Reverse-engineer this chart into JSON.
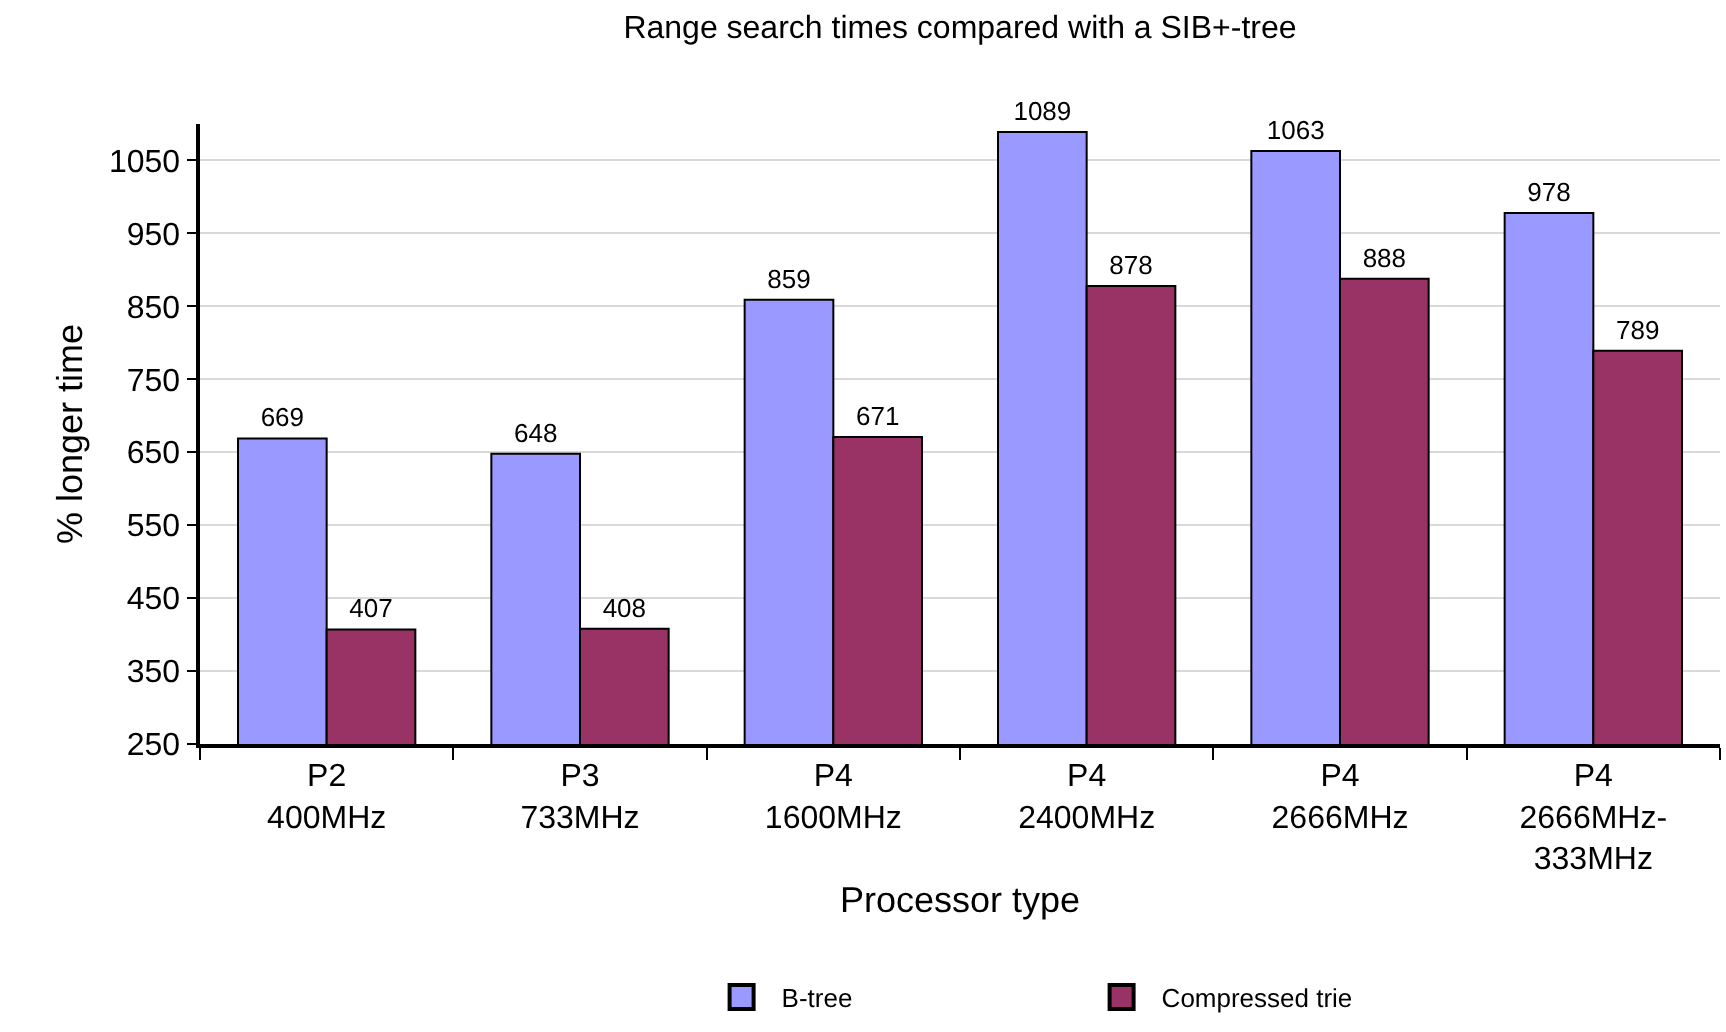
{
  "chart_data": {
    "type": "bar",
    "title": "Range search times compared with a SIB+-tree",
    "xlabel": "Processor type",
    "ylabel": "% longer time",
    "categories": [
      "P2\n400MHz",
      "P3\n733MHz",
      "P4\n1600MHz",
      "P4\n2400MHz",
      "P4\n2666MHz",
      "P4\n2666MHz-\n333MHz"
    ],
    "series": [
      {
        "name": "B-tree",
        "color": "#9999ff",
        "values": [
          669,
          648,
          859,
          1089,
          1063,
          978
        ]
      },
      {
        "name": "Compressed trie",
        "color": "#993366",
        "values": [
          407,
          408,
          671,
          878,
          888,
          789
        ]
      }
    ],
    "ylim": [
      250,
      1100
    ],
    "yticks": [
      250,
      350,
      450,
      550,
      650,
      750,
      850,
      950,
      1050
    ],
    "grid": "y",
    "legend": "bottom",
    "data_labels": true
  }
}
